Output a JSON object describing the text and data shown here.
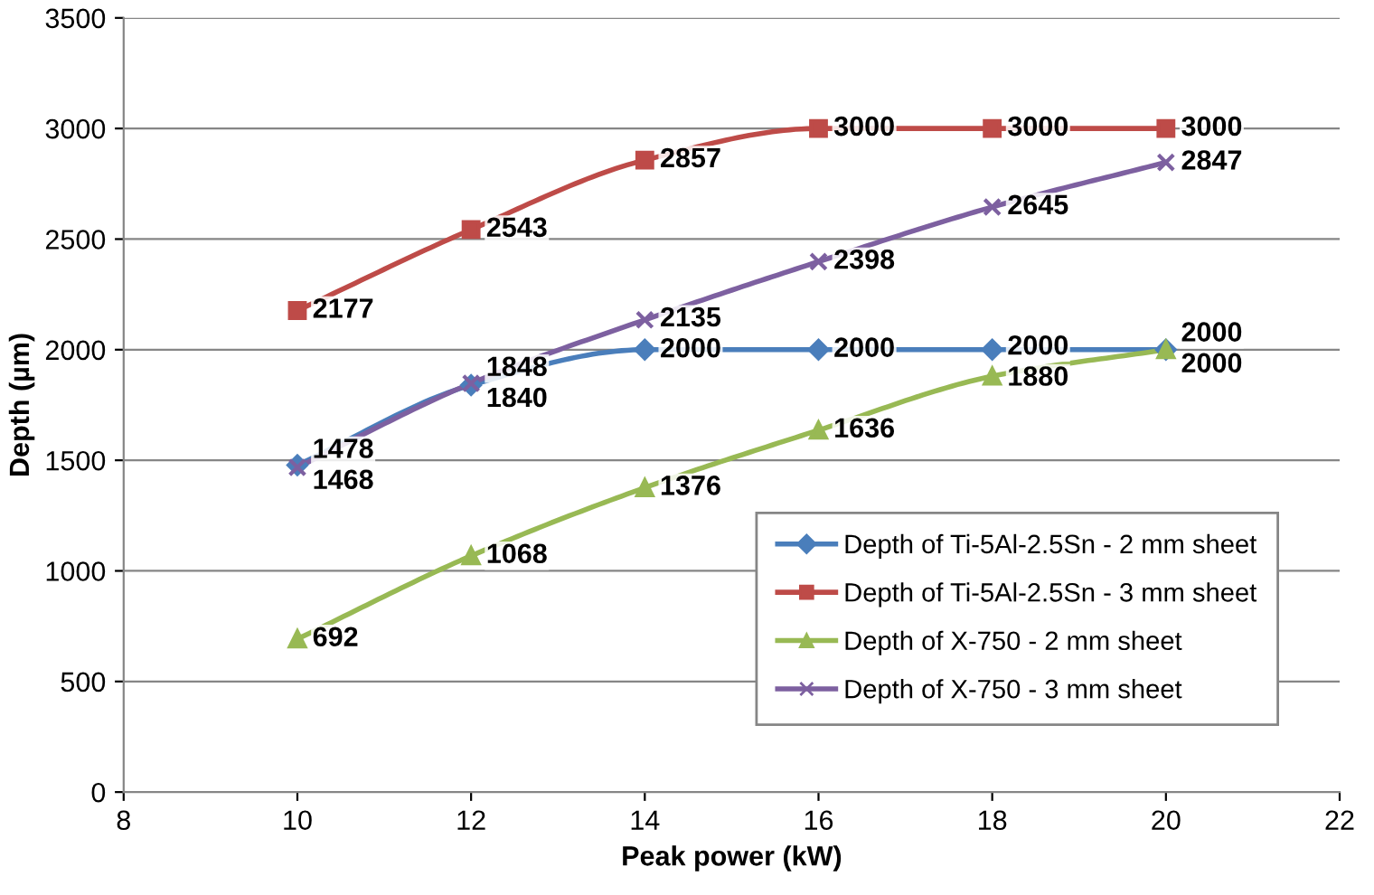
{
  "chart_data": {
    "type": "line",
    "xlabel": "Peak power (kW)",
    "ylabel": "Depth (µm)",
    "x": [
      10,
      12,
      14,
      16,
      18,
      20
    ],
    "series": [
      {
        "name": "Depth of Ti-5Al-2.5Sn - 2 mm sheet",
        "color": "#4a7ebb",
        "marker": "diamond",
        "values": [
          1478,
          1840,
          2000,
          2000,
          2000,
          2000
        ]
      },
      {
        "name": "Depth of Ti-5Al-2.5Sn - 3 mm sheet",
        "color": "#be4b48",
        "marker": "square",
        "values": [
          2177,
          2543,
          2857,
          3000,
          3000,
          3000
        ]
      },
      {
        "name": "Depth of X-750 - 2 mm sheet",
        "color": "#98b954",
        "marker": "triangle",
        "values": [
          692,
          1068,
          1376,
          1636,
          1880,
          2000
        ]
      },
      {
        "name": "Depth of X-750 - 3 mm sheet",
        "color": "#7d60a0",
        "marker": "cross",
        "values": [
          1468,
          1848,
          2135,
          2398,
          2645,
          2847
        ]
      }
    ],
    "xlim": [
      8,
      22
    ],
    "xticks": [
      8,
      10,
      12,
      14,
      16,
      18,
      20,
      22
    ],
    "ylim": [
      0,
      3500
    ],
    "yticks": [
      0,
      500,
      1000,
      1500,
      2000,
      2500,
      3000,
      3500
    ],
    "grid": "y",
    "legend": "bottom right",
    "data_labels": true,
    "line_style": "solid"
  }
}
